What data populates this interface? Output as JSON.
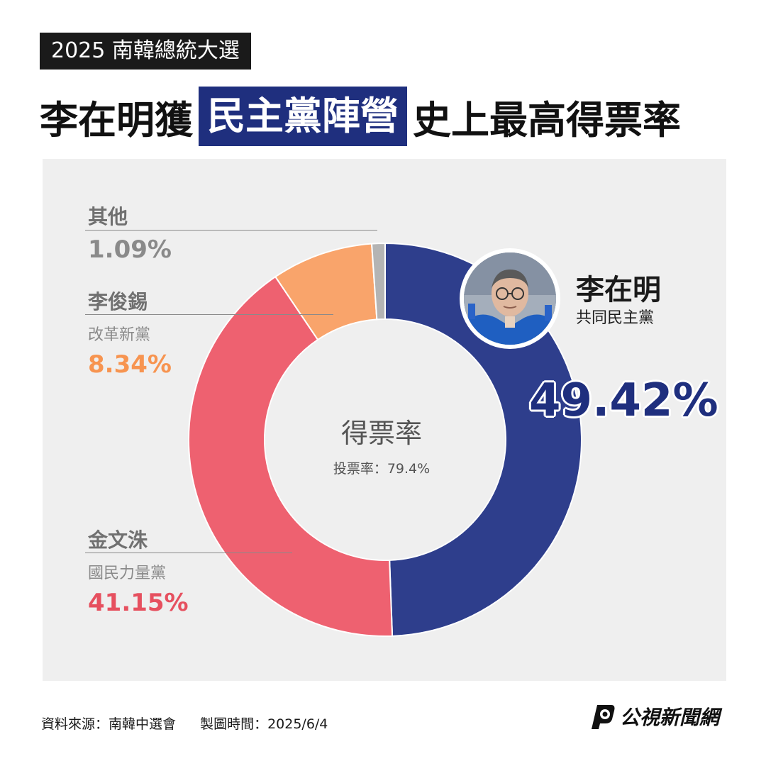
{
  "header": {
    "tag": "2025 南韓總統大選",
    "headline_pre": "李在明獲",
    "headline_highlight": "民主黨陣營",
    "headline_post": "史上最高得票率"
  },
  "colors": {
    "lee_jae_myung": "#2e3e8c",
    "kim_moon_soo": "#ee6170",
    "lee_jun_seok": "#f9a46b",
    "others": "#b4b4b4",
    "highlight": "#1f2f7e",
    "panel_bg": "#efefef"
  },
  "chart_data": {
    "type": "pie",
    "title": "得票率",
    "subtitle": "投票率：79.4%",
    "series": [
      {
        "name": "李在明",
        "party": "共同民主黨",
        "value": 49.42,
        "label": "49.42%",
        "color": "#2e3e8c"
      },
      {
        "name": "金文洙",
        "party": "國民力量黨",
        "value": 41.15,
        "label": "41.15%",
        "color": "#ee6170"
      },
      {
        "name": "李俊錫",
        "party": "改革新黨",
        "value": 8.34,
        "label": "8.34%",
        "color": "#f9a46b"
      },
      {
        "name": "其他",
        "party": "",
        "value": 1.09,
        "label": "1.09%",
        "color": "#b4b4b4"
      }
    ]
  },
  "footer": {
    "source": "資料來源：南韓中選會",
    "made": "製圖時間：2025/6/4",
    "logo_text": "公視新聞網"
  }
}
